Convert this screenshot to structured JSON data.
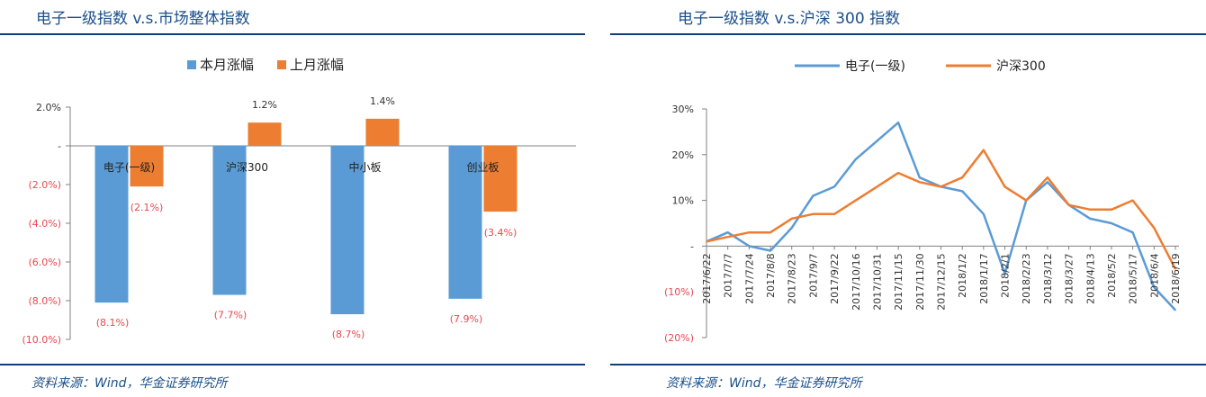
{
  "left": {
    "title": "电子一级指数 v.s.市场整体指数",
    "source": "资料来源：Wind，华金证券研究所"
  },
  "right": {
    "title": "电子一级指数 v.s.沪深 300 指数",
    "source": "资料来源：Wind，华金证券研究所"
  },
  "colors": {
    "blue": "#5b9bd5",
    "orange": "#ed7d31",
    "label_red": "#e8474f",
    "title_blue": "#1a4f8b",
    "rule": "#0f3f7a"
  },
  "chart_data": [
    {
      "type": "bar",
      "categories": [
        "电子(一级)",
        "沪深300",
        "中小板",
        "创业板"
      ],
      "series": [
        {
          "name": "本月涨幅",
          "values": [
            -8.1,
            -7.7,
            -8.7,
            -7.9
          ],
          "labels": [
            "(8.1%)",
            "(7.7%)",
            "(8.7%)",
            "(7.9%)"
          ]
        },
        {
          "name": "上月涨幅",
          "values": [
            -2.1,
            1.2,
            1.4,
            -3.4
          ],
          "labels": [
            "(2.1%)",
            "1.2%",
            "1.4%",
            "(3.4%)"
          ]
        }
      ],
      "ylim": [
        -10,
        2
      ],
      "yticks": [
        2,
        0,
        -2,
        -4,
        -6,
        -8,
        -10
      ],
      "ytick_labels": [
        "2.0%",
        "-",
        "(2.0%)",
        "(4.0%)",
        "(6.0%)",
        "(8.0%)",
        "(10.0%)"
      ],
      "legend": "top-center",
      "grid": false
    },
    {
      "type": "line",
      "x": [
        "2017/6/22",
        "2017/7/7",
        "2017/7/24",
        "2017/8/8",
        "2017/8/23",
        "2017/9/7",
        "2017/9/22",
        "2017/10/16",
        "2017/10/31",
        "2017/11/15",
        "2017/11/30",
        "2017/12/15",
        "2018/1/2",
        "2018/1/17",
        "2018/2/1",
        "2018/2/23",
        "2018/3/12",
        "2018/3/27",
        "2018/4/13",
        "2018/5/2",
        "2018/5/17",
        "2018/6/4",
        "2018/6/19"
      ],
      "series": [
        {
          "name": "电子(一级)",
          "values": [
            1,
            3,
            0,
            -1,
            4,
            11,
            13,
            19,
            23,
            27,
            15,
            13,
            12,
            7,
            -6,
            10,
            14,
            9,
            6,
            5,
            3,
            -9,
            -14
          ]
        },
        {
          "name": "沪深300",
          "values": [
            1,
            2,
            3,
            3,
            6,
            7,
            7,
            10,
            13,
            16,
            14,
            13,
            15,
            21,
            13,
            10,
            15,
            9,
            8,
            8,
            10,
            4,
            -5
          ]
        }
      ],
      "ylim": [
        -20,
        30
      ],
      "yticks": [
        30,
        20,
        10,
        0,
        -10,
        -20
      ],
      "ytick_labels": [
        "30%",
        "20%",
        "10%",
        "-",
        "(10%)",
        "(20%)"
      ],
      "legend": "top-center",
      "grid": false
    }
  ]
}
